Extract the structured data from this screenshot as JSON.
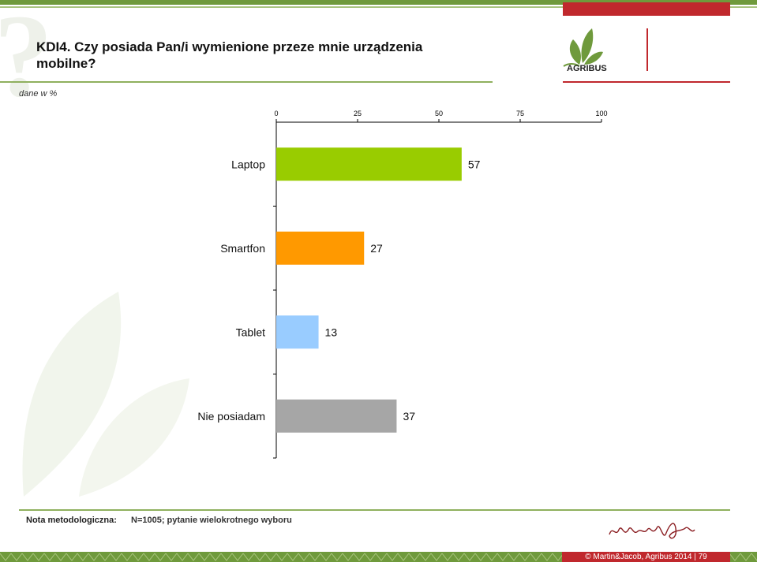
{
  "header": {
    "title": "KDI4. Czy posiada Pan/i wymienione przeze mnie urządzenia mobilne?",
    "subtitle": "dane w %",
    "logo_text": "AGRIBUS"
  },
  "colors": {
    "accent_green": "#6f9a3c",
    "accent_red": "#c0282d"
  },
  "chart_data": {
    "type": "bar",
    "orientation": "horizontal",
    "categories": [
      "Laptop",
      "Smartfon",
      "Tablet",
      "Nie posiadam"
    ],
    "values": [
      57,
      27,
      13,
      37
    ],
    "bar_colors": [
      "#99cc00",
      "#ff9900",
      "#99ccff",
      "#a6a6a6"
    ],
    "xlim": [
      0,
      100
    ],
    "xticks": [
      0,
      25,
      50,
      75,
      100
    ],
    "xtick_position": "top",
    "grid": false,
    "legend": "none"
  },
  "footer": {
    "note_label": "Nota metodologiczna:",
    "note_text": "N=1005; pytanie wielokrotnego wyboru",
    "signature": "martin&jacob",
    "copyright": "© Martin&Jacob, Agribus 2014 | 79"
  }
}
